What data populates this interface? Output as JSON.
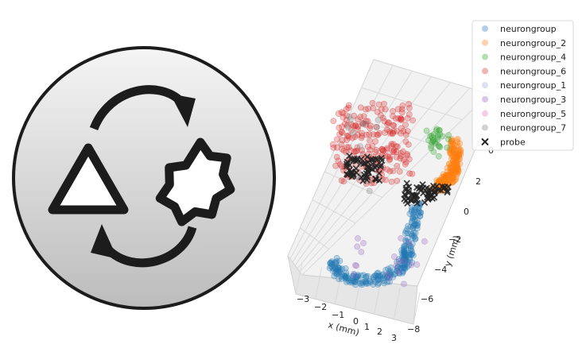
{
  "logo": {
    "description_icon": "sync-shapes-icon",
    "background_gradient": [
      "#f5f5f5",
      "#bdbdbd"
    ],
    "stroke_color": "#1c1c1c"
  },
  "chart_data": {
    "type": "scatter",
    "projection": "3d",
    "xlabel": "x (mm)",
    "ylabel": "y (mm)",
    "x_ticks": [
      "−3",
      "−2",
      "−1",
      "0",
      "1",
      "2",
      "3"
    ],
    "y_ticks": [
      "2",
      "0",
      "−2",
      "−4",
      "−6",
      "−8"
    ],
    "top_tick": "0",
    "legend_position": "top-right",
    "series": [
      {
        "name": "neurongroup",
        "color": "#1f77b4",
        "marker": "circle"
      },
      {
        "name": "neurongroup_2",
        "color": "#ff7f0e",
        "marker": "circle"
      },
      {
        "name": "neurongroup_4",
        "color": "#2ca02c",
        "marker": "circle"
      },
      {
        "name": "neurongroup_6",
        "color": "#d62728",
        "marker": "circle"
      },
      {
        "name": "neurongroup_1",
        "color": "#9aa7d8",
        "marker": "circle"
      },
      {
        "name": "neurongroup_3",
        "color": "#9467bd",
        "marker": "circle"
      },
      {
        "name": "neurongroup_5",
        "color": "#e377c2",
        "marker": "circle"
      },
      {
        "name": "neurongroup_7",
        "color": "#7f7f7f",
        "marker": "circle"
      },
      {
        "name": "probe",
        "color": "#222222",
        "marker": "x"
      }
    ]
  }
}
